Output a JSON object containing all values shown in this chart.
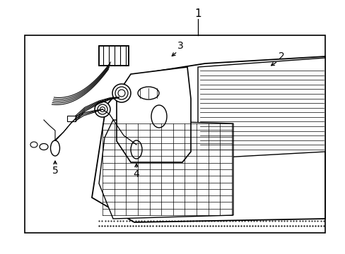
{
  "background_color": "#ffffff",
  "line_color": "#000000",
  "text_color": "#000000",
  "label_1": "1",
  "label_2": "2",
  "label_3": "3",
  "label_4": "4",
  "label_5": "5",
  "fig_width": 4.89,
  "fig_height": 3.6,
  "dpi": 100
}
